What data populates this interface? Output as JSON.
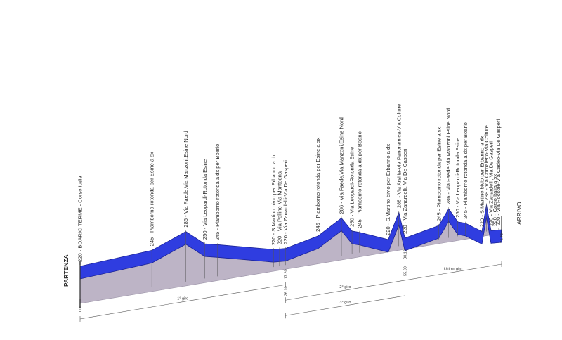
{
  "chart_data": {
    "type": "area",
    "start_label": "PARTENZA",
    "finish_label": "ARRIVO",
    "points": [
      {
        "km": 0.0,
        "alt": 220,
        "label": "220 - BOARIO TERME - Corso Italia"
      },
      {
        "km": 9.5,
        "alt": 245,
        "label": "245 - Piamborno rotonda per Esine a sx"
      },
      {
        "km": 14.0,
        "alt": 286,
        "label": "286 - Via Faede,Via Manzoni,Esine Nord"
      },
      {
        "km": 16.5,
        "alt": 250,
        "label": "250 - Via Leopardi-Rotonda Esine"
      },
      {
        "km": 18.2,
        "alt": 245,
        "label": "245 - Piamborno rotonda a dx per Boario"
      },
      {
        "km": 25.6,
        "alt": 220,
        "label": "220 - S.Martino bivio per Erbanno a dx"
      },
      {
        "km": 26.4,
        "alt": 220,
        "label": "220 - Via Polline-Via Mantegna"
      },
      {
        "km": 27.2,
        "alt": 220,
        "label": "220 - Via Zanardelli-Via De Gasperi"
      },
      {
        "km": 31.5,
        "alt": 245,
        "label": "245 - Piamborno rotonda per Esine a sx"
      },
      {
        "km": 34.6,
        "alt": 286,
        "label": "286 - Via Faede,Via Manzoni,Esine Nord"
      },
      {
        "km": 36.0,
        "alt": 250,
        "label": "250 - Via Leopardi-Rotonda Esine"
      },
      {
        "km": 37.0,
        "alt": 245,
        "label": "245 - Piamborno rotonda a dx per Boario"
      },
      {
        "km": 40.8,
        "alt": 220,
        "label": "220 - S.Martino bivio per Erbanno a dx"
      },
      {
        "km": 42.2,
        "alt": 288,
        "label": "288 - Via Arsilia-Via Panoramica-Via Colture"
      },
      {
        "km": 43.0,
        "alt": 220,
        "label": "220 - Via Zanardelli, Via De Gasperi"
      },
      {
        "km": 47.5,
        "alt": 245,
        "label": "245 - Piamborno rotonda per Esine a sx"
      },
      {
        "km": 48.8,
        "alt": 286,
        "label": "286 - Via Faede,Via Manzoni Esine Nord"
      },
      {
        "km": 50.0,
        "alt": 250,
        "label": "250 - Via Leopardi-Rotonda Esine"
      },
      {
        "km": 51.0,
        "alt": 245,
        "label": "245 - Piamborno rotonda a dx per Boario"
      },
      {
        "km": 53.2,
        "alt": 220,
        "label": "220 - S.Martino bivio per Erbanno a dx"
      },
      {
        "km": 53.8,
        "alt": 288,
        "label": "288 - Via Cornaletto-Via Colture"
      },
      {
        "km": 54.4,
        "alt": 220,
        "label": "220 - Via Zanardelli, Via De Gasperi"
      },
      {
        "km": 54.9,
        "alt": 220,
        "label": "220 - Corso Italia a sx"
      },
      {
        "km": 55.4,
        "alt": 220,
        "label": "220 - Via Roccole-Via Cadeo-Via De Gasperi"
      },
      {
        "km": 55.8,
        "alt": 220,
        "label": ""
      }
    ],
    "km_markers": [
      {
        "km": 0.0,
        "text": "0.00"
      },
      {
        "km": 27.2,
        "text": "17.20"
      },
      {
        "km": 27.2,
        "text": "26.10"
      },
      {
        "km": 43.0,
        "text": "38.10"
      },
      {
        "km": 43.0,
        "text": "55.00"
      },
      {
        "km": 55.8,
        "text": "74.70"
      }
    ],
    "laps": [
      {
        "name": "1° giro",
        "from_km": 0,
        "to_km": 27.2,
        "row": 0
      },
      {
        "name": "2° giro",
        "from_km": 27.2,
        "to_km": 43.0,
        "row": 1
      },
      {
        "name": "3° giro",
        "from_km": 27.2,
        "to_km": 43.0,
        "row": 2
      },
      {
        "name": "Ultimo giro",
        "from_km": 43.0,
        "to_km": 55.8,
        "row": 1
      }
    ],
    "colors": {
      "top": "#2f3de0",
      "front": "#bdb4c6",
      "edge": "#1b2396"
    }
  }
}
